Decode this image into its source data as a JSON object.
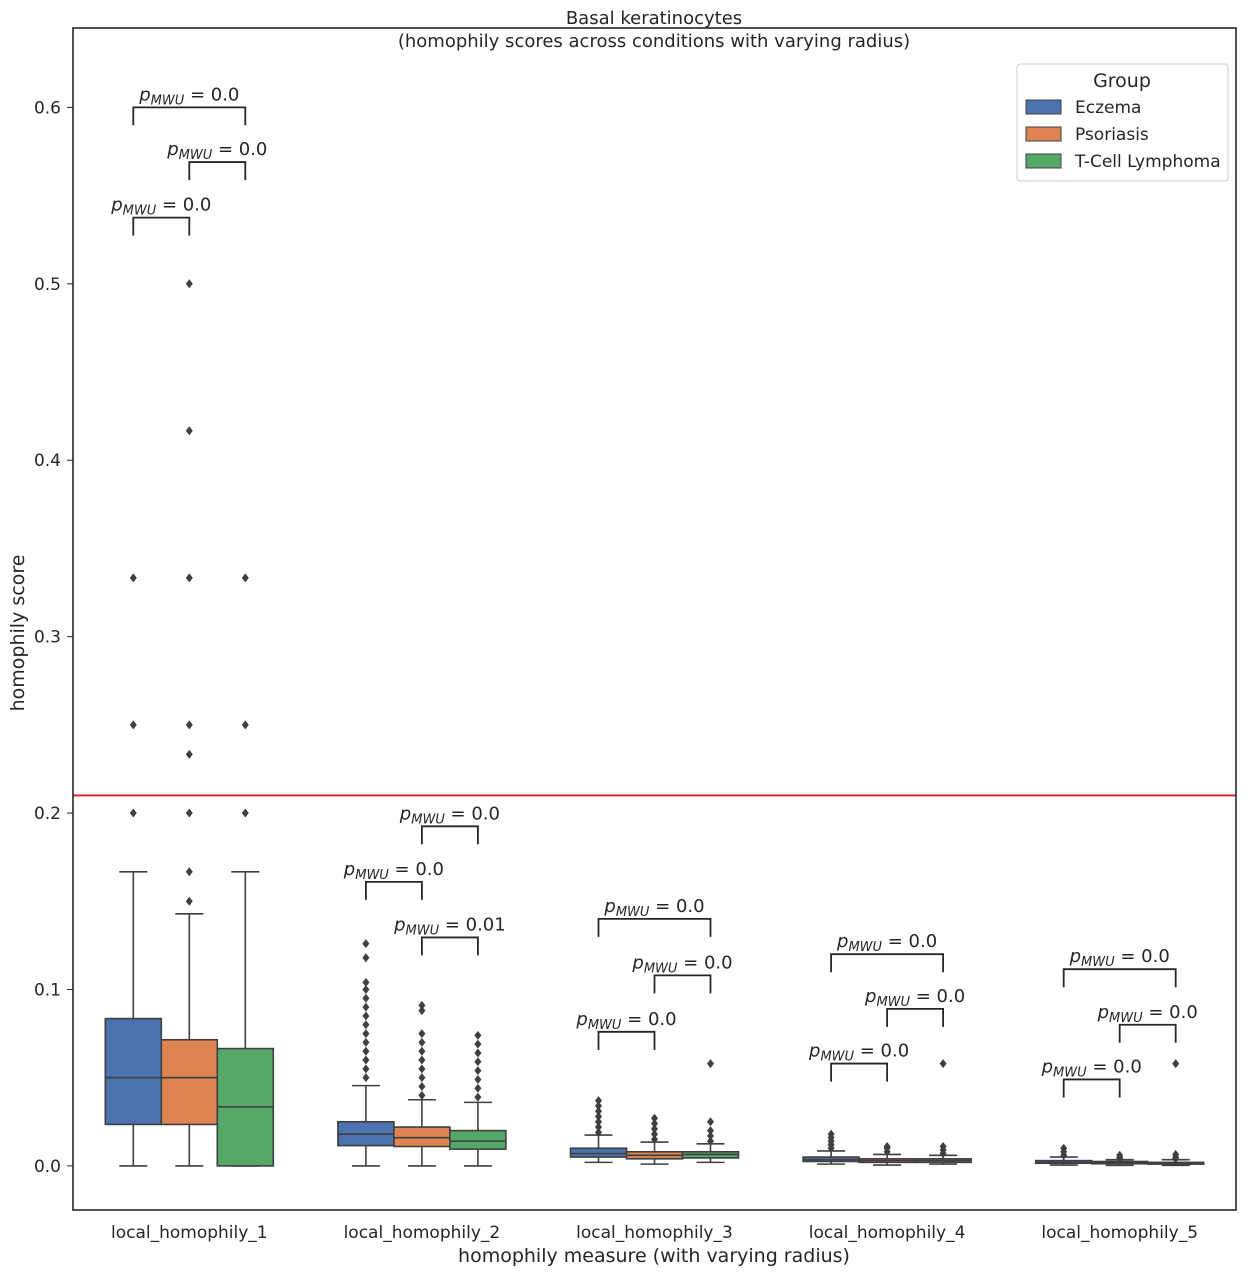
{
  "chart_data": {
    "type": "box",
    "title": "Basal keratinocytes",
    "subtitle": "(homophily scores across conditions with varying radius)",
    "xlabel": "homophily measure (with varying radius)",
    "ylabel": "homophily score",
    "ylim": [
      -0.025,
      0.645
    ],
    "yticks": [
      0.0,
      0.1,
      0.2,
      0.3,
      0.4,
      0.5,
      0.6
    ],
    "ytick_labels": [
      "0.0",
      "0.1",
      "0.2",
      "0.3",
      "0.4",
      "0.5",
      "0.6"
    ],
    "threshold_line": {
      "y": 0.21,
      "color": "#e41a1c"
    },
    "categories": [
      "local_homophily_1",
      "local_homophily_2",
      "local_homophily_3",
      "local_homophily_4",
      "local_homophily_5"
    ],
    "legend": {
      "title": "Group",
      "position": "top-right",
      "entries": [
        "Eczema",
        "Psoriasis",
        "T-Cell Lymphoma"
      ]
    },
    "series": [
      {
        "name": "Eczema",
        "color": "#4c72b0",
        "boxes": [
          {
            "whisker_low": 0.0,
            "q1": 0.0235,
            "median": 0.05,
            "q3": 0.0835,
            "whisker_high": 0.1667,
            "outliers": [
              0.2,
              0.25,
              0.3333
            ]
          },
          {
            "whisker_low": 0.0,
            "q1": 0.0115,
            "median": 0.018,
            "q3": 0.025,
            "whisker_high": 0.0455,
            "outliers": [
              0.05,
              0.055,
              0.06,
              0.065,
              0.07,
              0.075,
              0.08,
              0.085,
              0.09,
              0.095,
              0.1,
              0.104,
              0.118,
              0.126
            ]
          },
          {
            "whisker_low": 0.002,
            "q1": 0.005,
            "median": 0.007,
            "q3": 0.01,
            "whisker_high": 0.0175,
            "outliers": [
              0.019,
              0.022,
              0.025,
              0.028,
              0.031,
              0.034,
              0.037
            ]
          },
          {
            "whisker_low": 0.001,
            "q1": 0.0025,
            "median": 0.0035,
            "q3": 0.005,
            "whisker_high": 0.0085,
            "outliers": [
              0.01,
              0.012,
              0.014,
              0.016,
              0.018
            ]
          },
          {
            "whisker_low": 0.0005,
            "q1": 0.0015,
            "median": 0.002,
            "q3": 0.003,
            "whisker_high": 0.005,
            "outliers": [
              0.006,
              0.008,
              0.01
            ]
          }
        ]
      },
      {
        "name": "Psoriasis",
        "color": "#dd8452",
        "boxes": [
          {
            "whisker_low": 0.0,
            "q1": 0.0235,
            "median": 0.05,
            "q3": 0.0715,
            "whisker_high": 0.1429,
            "outliers": [
              0.15,
              0.1667,
              0.2,
              0.2333,
              0.25,
              0.3333,
              0.4167,
              0.5
            ]
          },
          {
            "whisker_low": 0.0,
            "q1": 0.011,
            "median": 0.016,
            "q3": 0.022,
            "whisker_high": 0.0375,
            "outliers": [
              0.04,
              0.045,
              0.05,
              0.055,
              0.06,
              0.065,
              0.07,
              0.075,
              0.088,
              0.091
            ]
          },
          {
            "whisker_low": 0.001,
            "q1": 0.004,
            "median": 0.006,
            "q3": 0.008,
            "whisker_high": 0.0135,
            "outliers": [
              0.015,
              0.018,
              0.021,
              0.024,
              0.027
            ]
          },
          {
            "whisker_low": 0.0005,
            "q1": 0.002,
            "median": 0.003,
            "q3": 0.004,
            "whisker_high": 0.0065,
            "outliers": [
              0.008,
              0.01,
              0.011
            ]
          },
          {
            "whisker_low": 0.0003,
            "q1": 0.0012,
            "median": 0.0018,
            "q3": 0.0025,
            "whisker_high": 0.0035,
            "outliers": [
              0.004,
              0.005,
              0.006
            ]
          }
        ]
      },
      {
        "name": "T-Cell Lymphoma",
        "color": "#55a868",
        "boxes": [
          {
            "whisker_low": 0.0,
            "q1": 0.0,
            "median": 0.0335,
            "q3": 0.0665,
            "whisker_high": 0.1667,
            "outliers": [
              0.2,
              0.25,
              0.3333
            ]
          },
          {
            "whisker_low": 0.0,
            "q1": 0.0095,
            "median": 0.014,
            "q3": 0.02,
            "whisker_high": 0.036,
            "outliers": [
              0.039,
              0.044,
              0.049,
              0.054,
              0.059,
              0.064,
              0.069,
              0.074
            ]
          },
          {
            "whisker_low": 0.002,
            "q1": 0.0045,
            "median": 0.0065,
            "q3": 0.008,
            "whisker_high": 0.0125,
            "outliers": [
              0.014,
              0.017,
              0.02,
              0.025,
              0.058
            ]
          },
          {
            "whisker_low": 0.001,
            "q1": 0.002,
            "median": 0.003,
            "q3": 0.004,
            "whisker_high": 0.006,
            "outliers": [
              0.007,
              0.009,
              0.011,
              0.058
            ]
          },
          {
            "whisker_low": 0.0003,
            "q1": 0.001,
            "median": 0.0015,
            "q3": 0.002,
            "whisker_high": 0.0035,
            "outliers": [
              0.004,
              0.005,
              0.0065,
              0.058
            ]
          }
        ]
      }
    ],
    "annotations": [
      {
        "category": 0,
        "from": 0,
        "to": 2,
        "y": 0.6,
        "label": "0.0"
      },
      {
        "category": 0,
        "from": 1,
        "to": 2,
        "y": 0.569,
        "label": "0.0"
      },
      {
        "category": 0,
        "from": 0,
        "to": 1,
        "y": 0.5375,
        "label": "0.0"
      },
      {
        "category": 1,
        "from": 1,
        "to": 2,
        "y": 0.1925,
        "label": "0.0"
      },
      {
        "category": 1,
        "from": 0,
        "to": 1,
        "y": 0.161,
        "label": "0.0"
      },
      {
        "category": 1,
        "from": 1,
        "to": 2,
        "y": 0.1295,
        "label": "0.01"
      },
      {
        "category": 2,
        "from": 0,
        "to": 2,
        "y": 0.14,
        "label": "0.0"
      },
      {
        "category": 2,
        "from": 1,
        "to": 2,
        "y": 0.108,
        "label": "0.0"
      },
      {
        "category": 2,
        "from": 0,
        "to": 1,
        "y": 0.076,
        "label": "0.0"
      },
      {
        "category": 3,
        "from": 0,
        "to": 2,
        "y": 0.12,
        "label": "0.0"
      },
      {
        "category": 3,
        "from": 1,
        "to": 2,
        "y": 0.089,
        "label": "0.0"
      },
      {
        "category": 3,
        "from": 0,
        "to": 1,
        "y": 0.058,
        "label": "0.0"
      },
      {
        "category": 4,
        "from": 0,
        "to": 2,
        "y": 0.1115,
        "label": "0.0"
      },
      {
        "category": 4,
        "from": 1,
        "to": 2,
        "y": 0.08,
        "label": "0.0"
      },
      {
        "category": 4,
        "from": 0,
        "to": 1,
        "y": 0.049,
        "label": "0.0"
      }
    ]
  }
}
